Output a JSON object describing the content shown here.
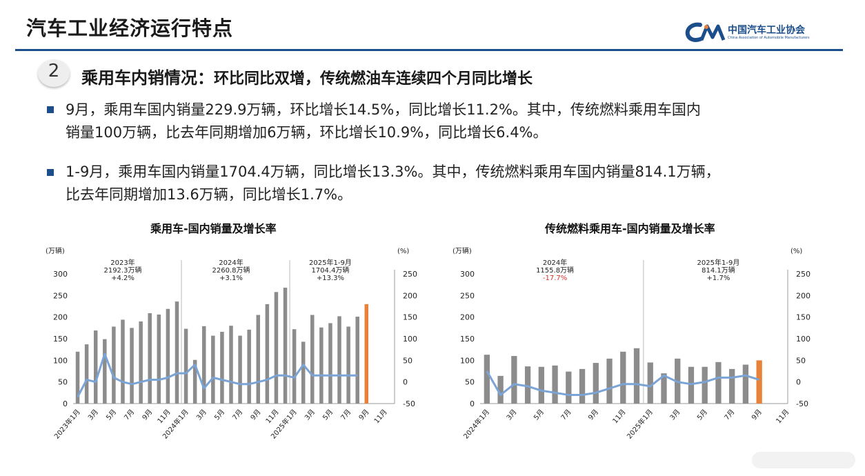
{
  "header": {
    "title": "汽车工业经济运行特点",
    "logo_text": "中国汽车工业协会",
    "logo_subtext": "China Association of Automobile Manufacturers"
  },
  "section": {
    "number": "2",
    "heading_main": "乘用车内销情况：",
    "heading_rest": "环比同比双增，传统燃油车连续四个月同比增长"
  },
  "bullets": [
    {
      "line1": "9月，乘用车国内销量229.9万辆，环比增长14.5%，同比增长11.2%。其中，传统燃料乘用车国内",
      "line2": "销量100万辆，比去年同期增加6万辆，环比增长10.9%，同比增长6.4%。"
    },
    {
      "line1": "1-9月，乘用车国内销量1704.4万辆，同比增长13.3%。其中，传统燃料乘用车国内销量814.1万辆，",
      "line2": "比去年同期增加13.6万辆，同比增长1.7%。"
    }
  ],
  "colors": {
    "brand": "#1c4e8c",
    "bar": "#8c8c8c",
    "bar_highlight": "#e8823a",
    "line": "#7aa3d6",
    "negative": "#d9312b"
  },
  "chart_data": [
    {
      "type": "bar",
      "title": "乘用车-国内销量及增长率",
      "left_unit": "(万辆)",
      "right_unit": "(%)",
      "left_ticks": [
        "300",
        "250",
        "200",
        "150",
        "100",
        "50",
        "0"
      ],
      "right_ticks": [
        "250",
        "200",
        "150",
        "100",
        "50",
        "0",
        "-50"
      ],
      "ylim": [
        0,
        300
      ],
      "y2lim": [
        -50,
        250
      ],
      "x_labels": [
        "2023年1月",
        "3月",
        "5月",
        "7月",
        "9月",
        "11月",
        "2024年1月",
        "3月",
        "5月",
        "7月",
        "9月",
        "11月",
        "2025年1月",
        "3月",
        "5月",
        "7月",
        "9月",
        "11月"
      ],
      "values": [
        120,
        137,
        169,
        149,
        178,
        194,
        175,
        190,
        209,
        206,
        219,
        236,
        173,
        101,
        179,
        157,
        166,
        180,
        157,
        171,
        205,
        230,
        258,
        268,
        172,
        143,
        205,
        176,
        186,
        202,
        178,
        201,
        230,
        null,
        null
      ],
      "growth": [
        -35,
        5,
        0,
        65,
        10,
        0,
        -5,
        0,
        5,
        5,
        10,
        20,
        20,
        40,
        -15,
        10,
        5,
        0,
        -5,
        -5,
        0,
        5,
        15,
        15,
        10,
        40,
        15,
        15,
        15,
        15,
        15,
        15,
        null,
        null,
        null
      ],
      "annotations": [
        {
          "lines": [
            "2023年",
            "2192.3万辆",
            "+4.2%"
          ],
          "at": 5
        },
        {
          "lines": [
            "2024年",
            "2260.8万辆",
            "+3.1%"
          ],
          "at": 17
        },
        {
          "lines": [
            "2025年1-9月",
            "1704.4万辆",
            "+13.3%"
          ],
          "at": 28
        }
      ]
    },
    {
      "type": "bar",
      "title": "传统燃料乘用车-国内销量及增长率",
      "left_unit": "(万辆)",
      "right_unit": "(%)",
      "left_ticks": [
        "300",
        "250",
        "200",
        "150",
        "100",
        "50",
        "0"
      ],
      "right_ticks": [
        "250",
        "200",
        "150",
        "100",
        "50",
        "0",
        "-50"
      ],
      "ylim": [
        0,
        300
      ],
      "y2lim": [
        -50,
        250
      ],
      "x_labels": [
        "2024年1月",
        "3月",
        "5月",
        "7月",
        "9月",
        "11月",
        "2025年1月",
        "3月",
        "5月",
        "7月",
        "9月",
        "11月"
      ],
      "values": [
        113,
        64,
        110,
        86,
        85,
        88,
        74,
        80,
        94,
        104,
        120,
        128,
        95,
        70,
        104,
        85,
        85,
        96,
        80,
        90,
        100,
        null,
        null
      ],
      "growth": [
        25,
        -30,
        -5,
        -10,
        -20,
        -25,
        -30,
        -30,
        -25,
        -15,
        -5,
        -5,
        -10,
        15,
        0,
        -5,
        0,
        10,
        10,
        15,
        5,
        null,
        null
      ],
      "annotations": [
        {
          "lines": [
            "2024年",
            "1155.8万辆",
            "-17.7%"
          ],
          "at": 5,
          "red_last": true
        },
        {
          "lines": [
            "2025年1-9月",
            "814.1万辆",
            "+1.7%"
          ],
          "at": 17
        }
      ]
    }
  ]
}
